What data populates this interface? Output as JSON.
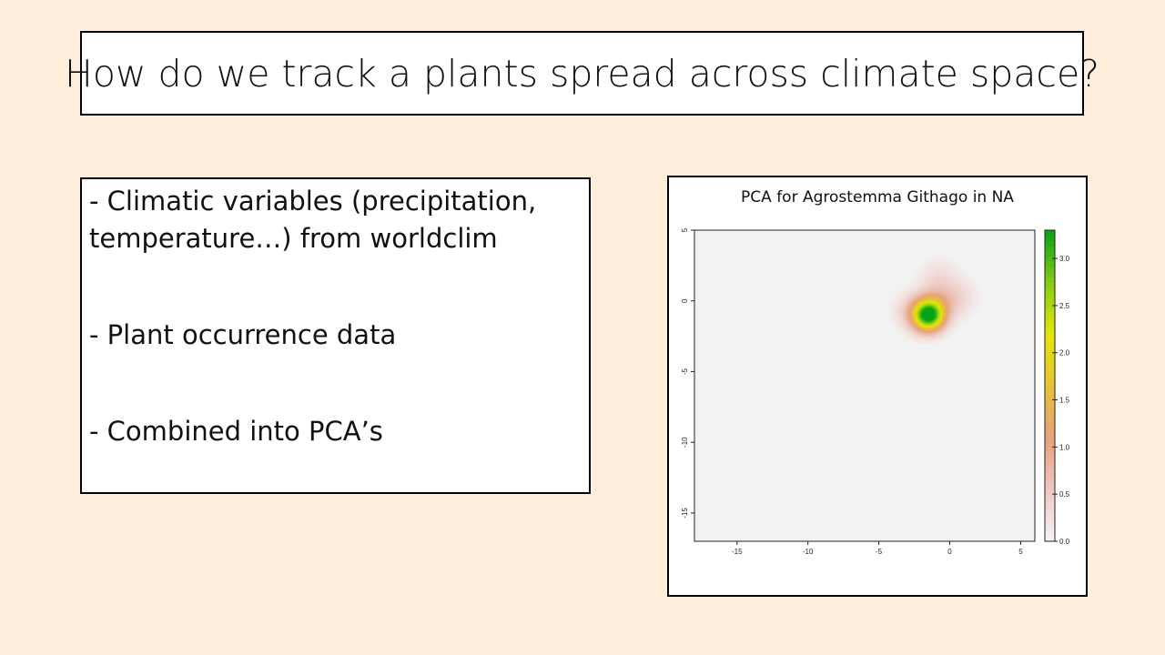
{
  "slide": {
    "title": "How do we track a plants spread across climate space?",
    "bullets": [
      "- Climatic variables (precipitation, temperature…) from worldclim",
      "- Plant occurrence data",
      "- Combined into PCA’s"
    ]
  },
  "chart_data": {
    "type": "heatmap",
    "title": "PCA for Agrostemma Githago in NA",
    "xlabel": "",
    "ylabel": "",
    "xlim": [
      -18,
      6
    ],
    "ylim": [
      -17,
      5
    ],
    "x_ticks": [
      -15,
      -10,
      -5,
      0,
      5
    ],
    "y_ticks": [
      5,
      0,
      -5,
      -10,
      -15
    ],
    "density_peaks": [
      {
        "x": -1.5,
        "y": -1.0,
        "value": 3.3
      },
      {
        "x": -0.9,
        "y": -0.2,
        "value": 0.6
      },
      {
        "x": -0.8,
        "y": 1.7,
        "value": 0.3
      },
      {
        "x": 0.6,
        "y": 0.3,
        "value": 0.35
      },
      {
        "x": -2.6,
        "y": -0.7,
        "value": 0.45
      }
    ],
    "colorbar": {
      "min": 0.0,
      "max": 3.3,
      "tick_labels": [
        "0.0",
        "0.5",
        "1.0",
        "1.5",
        "2.0",
        "2.5",
        "3.0"
      ],
      "colors": [
        "#f4f4f4",
        "#edc9c2",
        "#e6a27a",
        "#e7c335",
        "#e4e605",
        "#84cc12",
        "#07a312"
      ]
    },
    "background_color": "#f2f2f2",
    "grid": false,
    "legend": "right"
  }
}
